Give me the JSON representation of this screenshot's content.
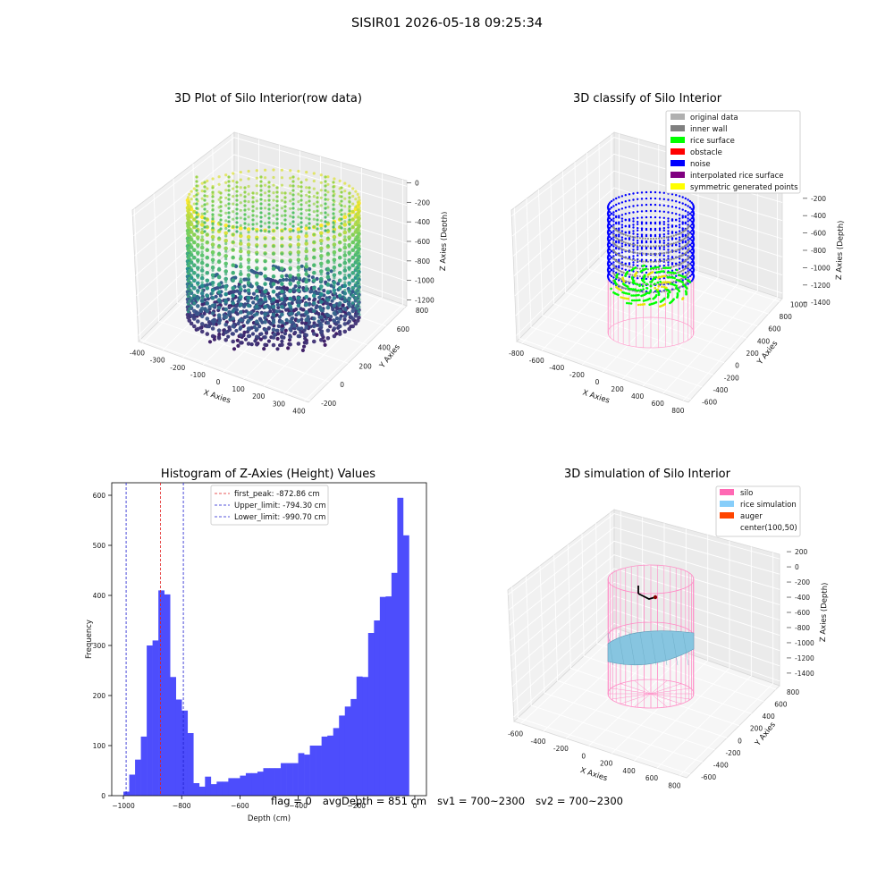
{
  "figure": {
    "title": "SISIR01 2026-05-18 09:25:34"
  },
  "status": {
    "flag": "flag = 0",
    "avg_depth": "avgDepth = 851 cm",
    "sv1": "sv1 = 700~2300",
    "sv2": "sv2 = 700~2300"
  },
  "chart_data": [
    {
      "type": "scatter",
      "title": "3D Plot of Silo Interior(row data)",
      "projection": "3d",
      "xlabel": "X Axies",
      "ylabel": "Y Axies",
      "zlabel": "Z Axies (Depth)",
      "xticks": [
        -400,
        -300,
        -200,
        -100,
        0,
        100,
        200,
        300,
        400
      ],
      "yticks": [
        -200,
        0,
        200,
        400,
        600,
        800
      ],
      "zticks": [
        0,
        -200,
        -400,
        -600,
        -800,
        -1000,
        -1200
      ],
      "xlim": [
        -420,
        420
      ],
      "ylim": [
        -220,
        820
      ],
      "zlim": [
        -1350,
        50
      ],
      "colormap": "viridis",
      "colormap_colors": [
        "#440154",
        "#3b528b",
        "#21918c",
        "#5ec962",
        "#fde725"
      ],
      "shape": {
        "kind": "cylinder-points",
        "center_x": 0,
        "center_y": 300,
        "radius": 390,
        "z_top": 0,
        "z_bottom": -1250
      },
      "grid": true
    },
    {
      "type": "scatter",
      "title": "3D classify of Silo Interior",
      "projection": "3d",
      "xlabel": "X Axies",
      "ylabel": "Y Axies",
      "zlabel": "Z Axies (Depth)",
      "xticks": [
        -800,
        -600,
        -400,
        -200,
        0,
        200,
        400,
        600,
        800
      ],
      "yticks": [
        -600,
        -400,
        -200,
        0,
        200,
        400,
        600,
        800,
        1000
      ],
      "zticks": [
        -200,
        -400,
        -600,
        -800,
        -1000,
        -1200,
        -1400
      ],
      "legend_position": "upper right",
      "legend": [
        {
          "label": "original data",
          "color": "#b0b0b0"
        },
        {
          "label": "inner wall",
          "color": "#808080"
        },
        {
          "label": "rice surface",
          "color": "#00ff00"
        },
        {
          "label": "obstacle",
          "color": "#ff0000"
        },
        {
          "label": "noise",
          "color": "#0000ff"
        },
        {
          "label": "interpolated rice surface",
          "color": "#800080"
        },
        {
          "label": "symmetric generated points",
          "color": "#ffff00"
        }
      ],
      "grid": true
    },
    {
      "type": "histogram",
      "title": "Histogram of Z-Axies (Height) Values",
      "xlabel": "Depth (cm)",
      "ylabel": "Frequency",
      "xlim": [
        -1040,
        40
      ],
      "ylim": [
        0,
        625
      ],
      "xticks": [
        -1000,
        -800,
        -600,
        -400,
        -200,
        0
      ],
      "yticks": [
        0,
        100,
        200,
        300,
        400,
        500,
        600
      ],
      "bar_color": "#4d4dfc",
      "bin_start": -1000,
      "bin_width": 20,
      "counts": [
        8,
        42,
        72,
        118,
        300,
        310,
        410,
        402,
        237,
        192,
        170,
        125,
        25,
        18,
        38,
        23,
        28,
        28,
        35,
        35,
        40,
        45,
        45,
        48,
        55,
        55,
        55,
        65,
        65,
        65,
        85,
        82,
        100,
        100,
        118,
        120,
        135,
        160,
        178,
        193,
        238,
        237,
        325,
        350,
        397,
        398,
        445,
        595,
        520
      ],
      "vlines": [
        {
          "label": "first_peak: -872.86 cm",
          "x": -872.86,
          "color": "#e02020"
        },
        {
          "label": "Upper_limit: -794.30 cm",
          "x": -794.3,
          "color": "#1f1fd0"
        },
        {
          "label": "Lower_limit: -990.70 cm",
          "x": -990.7,
          "color": "#1f1fd0"
        }
      ],
      "legend_position": "upper center"
    },
    {
      "type": "surface",
      "title": "3D simulation of Silo Interior",
      "projection": "3d",
      "xlabel": "X Axies",
      "ylabel": "Y Axies",
      "zlabel": "Z Axies (Depth)",
      "xticks": [
        -600,
        -400,
        -200,
        0,
        200,
        400,
        600,
        800
      ],
      "yticks": [
        -600,
        -400,
        -200,
        0,
        200,
        400,
        600,
        800
      ],
      "zticks": [
        200,
        0,
        -200,
        -400,
        -600,
        -800,
        -1000,
        -1200,
        -1400
      ],
      "legend_position": "upper right",
      "legend": [
        {
          "label": "silo",
          "color": "#ff69b4"
        },
        {
          "label": "rice simulation",
          "color": "#87cefa"
        },
        {
          "label": "auger",
          "color": "#ff4500"
        },
        {
          "label": "center(100,50)",
          "color": "#ffffff"
        }
      ],
      "grid": true
    }
  ]
}
